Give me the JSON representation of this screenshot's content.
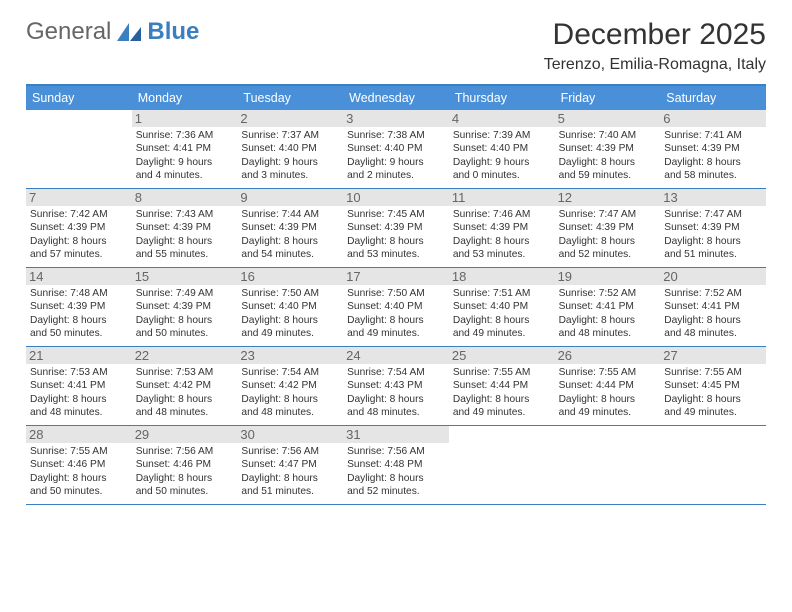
{
  "logo": {
    "text_general": "General",
    "text_blue": "Blue"
  },
  "title": "December 2025",
  "location": "Terenzo, Emilia-Romagna, Italy",
  "colors": {
    "header_bg": "#4a90d9",
    "header_text": "#ffffff",
    "border": "#3a7fbf",
    "daynum_bg": "#e5e5e5",
    "daynum_text": "#666666",
    "body_text": "#333333"
  },
  "day_names": [
    "Sunday",
    "Monday",
    "Tuesday",
    "Wednesday",
    "Thursday",
    "Friday",
    "Saturday"
  ],
  "weeks": [
    [
      null,
      {
        "n": "1",
        "sr": "Sunrise: 7:36 AM",
        "ss": "Sunset: 4:41 PM",
        "d1": "Daylight: 9 hours",
        "d2": "and 4 minutes."
      },
      {
        "n": "2",
        "sr": "Sunrise: 7:37 AM",
        "ss": "Sunset: 4:40 PM",
        "d1": "Daylight: 9 hours",
        "d2": "and 3 minutes."
      },
      {
        "n": "3",
        "sr": "Sunrise: 7:38 AM",
        "ss": "Sunset: 4:40 PM",
        "d1": "Daylight: 9 hours",
        "d2": "and 2 minutes."
      },
      {
        "n": "4",
        "sr": "Sunrise: 7:39 AM",
        "ss": "Sunset: 4:40 PM",
        "d1": "Daylight: 9 hours",
        "d2": "and 0 minutes."
      },
      {
        "n": "5",
        "sr": "Sunrise: 7:40 AM",
        "ss": "Sunset: 4:39 PM",
        "d1": "Daylight: 8 hours",
        "d2": "and 59 minutes."
      },
      {
        "n": "6",
        "sr": "Sunrise: 7:41 AM",
        "ss": "Sunset: 4:39 PM",
        "d1": "Daylight: 8 hours",
        "d2": "and 58 minutes."
      }
    ],
    [
      {
        "n": "7",
        "sr": "Sunrise: 7:42 AM",
        "ss": "Sunset: 4:39 PM",
        "d1": "Daylight: 8 hours",
        "d2": "and 57 minutes."
      },
      {
        "n": "8",
        "sr": "Sunrise: 7:43 AM",
        "ss": "Sunset: 4:39 PM",
        "d1": "Daylight: 8 hours",
        "d2": "and 55 minutes."
      },
      {
        "n": "9",
        "sr": "Sunrise: 7:44 AM",
        "ss": "Sunset: 4:39 PM",
        "d1": "Daylight: 8 hours",
        "d2": "and 54 minutes."
      },
      {
        "n": "10",
        "sr": "Sunrise: 7:45 AM",
        "ss": "Sunset: 4:39 PM",
        "d1": "Daylight: 8 hours",
        "d2": "and 53 minutes."
      },
      {
        "n": "11",
        "sr": "Sunrise: 7:46 AM",
        "ss": "Sunset: 4:39 PM",
        "d1": "Daylight: 8 hours",
        "d2": "and 53 minutes."
      },
      {
        "n": "12",
        "sr": "Sunrise: 7:47 AM",
        "ss": "Sunset: 4:39 PM",
        "d1": "Daylight: 8 hours",
        "d2": "and 52 minutes."
      },
      {
        "n": "13",
        "sr": "Sunrise: 7:47 AM",
        "ss": "Sunset: 4:39 PM",
        "d1": "Daylight: 8 hours",
        "d2": "and 51 minutes."
      }
    ],
    [
      {
        "n": "14",
        "sr": "Sunrise: 7:48 AM",
        "ss": "Sunset: 4:39 PM",
        "d1": "Daylight: 8 hours",
        "d2": "and 50 minutes."
      },
      {
        "n": "15",
        "sr": "Sunrise: 7:49 AM",
        "ss": "Sunset: 4:39 PM",
        "d1": "Daylight: 8 hours",
        "d2": "and 50 minutes."
      },
      {
        "n": "16",
        "sr": "Sunrise: 7:50 AM",
        "ss": "Sunset: 4:40 PM",
        "d1": "Daylight: 8 hours",
        "d2": "and 49 minutes."
      },
      {
        "n": "17",
        "sr": "Sunrise: 7:50 AM",
        "ss": "Sunset: 4:40 PM",
        "d1": "Daylight: 8 hours",
        "d2": "and 49 minutes."
      },
      {
        "n": "18",
        "sr": "Sunrise: 7:51 AM",
        "ss": "Sunset: 4:40 PM",
        "d1": "Daylight: 8 hours",
        "d2": "and 49 minutes."
      },
      {
        "n": "19",
        "sr": "Sunrise: 7:52 AM",
        "ss": "Sunset: 4:41 PM",
        "d1": "Daylight: 8 hours",
        "d2": "and 48 minutes."
      },
      {
        "n": "20",
        "sr": "Sunrise: 7:52 AM",
        "ss": "Sunset: 4:41 PM",
        "d1": "Daylight: 8 hours",
        "d2": "and 48 minutes."
      }
    ],
    [
      {
        "n": "21",
        "sr": "Sunrise: 7:53 AM",
        "ss": "Sunset: 4:41 PM",
        "d1": "Daylight: 8 hours",
        "d2": "and 48 minutes."
      },
      {
        "n": "22",
        "sr": "Sunrise: 7:53 AM",
        "ss": "Sunset: 4:42 PM",
        "d1": "Daylight: 8 hours",
        "d2": "and 48 minutes."
      },
      {
        "n": "23",
        "sr": "Sunrise: 7:54 AM",
        "ss": "Sunset: 4:42 PM",
        "d1": "Daylight: 8 hours",
        "d2": "and 48 minutes."
      },
      {
        "n": "24",
        "sr": "Sunrise: 7:54 AM",
        "ss": "Sunset: 4:43 PM",
        "d1": "Daylight: 8 hours",
        "d2": "and 48 minutes."
      },
      {
        "n": "25",
        "sr": "Sunrise: 7:55 AM",
        "ss": "Sunset: 4:44 PM",
        "d1": "Daylight: 8 hours",
        "d2": "and 49 minutes."
      },
      {
        "n": "26",
        "sr": "Sunrise: 7:55 AM",
        "ss": "Sunset: 4:44 PM",
        "d1": "Daylight: 8 hours",
        "d2": "and 49 minutes."
      },
      {
        "n": "27",
        "sr": "Sunrise: 7:55 AM",
        "ss": "Sunset: 4:45 PM",
        "d1": "Daylight: 8 hours",
        "d2": "and 49 minutes."
      }
    ],
    [
      {
        "n": "28",
        "sr": "Sunrise: 7:55 AM",
        "ss": "Sunset: 4:46 PM",
        "d1": "Daylight: 8 hours",
        "d2": "and 50 minutes."
      },
      {
        "n": "29",
        "sr": "Sunrise: 7:56 AM",
        "ss": "Sunset: 4:46 PM",
        "d1": "Daylight: 8 hours",
        "d2": "and 50 minutes."
      },
      {
        "n": "30",
        "sr": "Sunrise: 7:56 AM",
        "ss": "Sunset: 4:47 PM",
        "d1": "Daylight: 8 hours",
        "d2": "and 51 minutes."
      },
      {
        "n": "31",
        "sr": "Sunrise: 7:56 AM",
        "ss": "Sunset: 4:48 PM",
        "d1": "Daylight: 8 hours",
        "d2": "and 52 minutes."
      },
      null,
      null,
      null
    ]
  ]
}
